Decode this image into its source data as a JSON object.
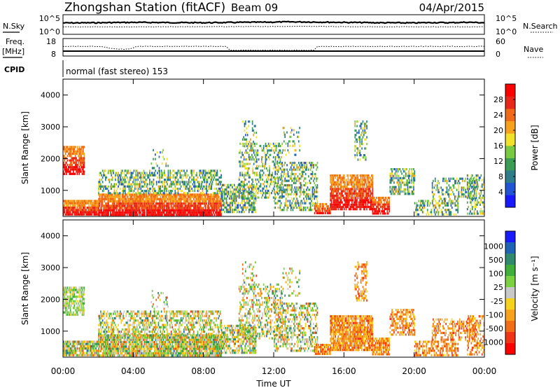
{
  "header": {
    "station": "Zhongshan Station (fitACF)",
    "beam": "Beam 09",
    "date": "04/Apr/2015"
  },
  "colors": {
    "nsky": "#000000",
    "nsearch": "#000000",
    "freq": "#000000",
    "nave": "#000000"
  },
  "chart_data": [
    {
      "type": "line",
      "title": "",
      "xlabel": "",
      "ylabel": "N.Sky",
      "y2label": "N.Search",
      "y_ticks": [
        "10^5",
        "10^0"
      ],
      "y2_ticks": [
        "10^5",
        "10^0"
      ],
      "y_scale": "log",
      "series": [
        {
          "name": "",
          "x": [
            0,
            2,
            4,
            6,
            8,
            10,
            12,
            13,
            14,
            16,
            18,
            20,
            21,
            22,
            23,
            24
          ],
          "values": [
            800,
            900,
            1100,
            1000,
            900,
            1100,
            1300,
            1500,
            1400,
            1100,
            900,
            800,
            1000,
            900,
            1200,
            900
          ]
        },
        {
          "name": "",
          "x": [
            0,
            4,
            8,
            12,
            14,
            16,
            18,
            20,
            22,
            24
          ],
          "values": [
            80,
            80,
            90,
            100,
            110,
            90,
            80,
            85,
            80,
            80
          ]
        }
      ]
    },
    {
      "type": "line",
      "title": "",
      "ylabel": "Freq. [MHz]",
      "y2label": "Nave",
      "y_ticks": [
        18,
        8
      ],
      "y2_ticks": [
        60,
        0
      ],
      "ylim": [
        8,
        18
      ],
      "y2lim": [
        0,
        60
      ],
      "series": [
        {
          "name": "",
          "x": [
            0,
            24
          ],
          "values": [
            10.8,
            10.8
          ]
        },
        {
          "name": "",
          "x": [
            0,
            2.2,
            2.6,
            3.0,
            3.4,
            3.8,
            4.2,
            6,
            9.3,
            9.5,
            14.3,
            14.5,
            24
          ],
          "values": [
            33,
            33,
            28,
            25,
            23,
            24,
            33,
            33,
            33,
            20,
            20,
            33,
            33
          ]
        }
      ]
    },
    {
      "type": "label",
      "cpid_label": "CPID",
      "cpid_text": "normal (fast stereo) 153"
    },
    {
      "type": "heatmap",
      "title": "",
      "ylabel": "Slant Range [km]",
      "ylim": [
        180,
        4500
      ],
      "y_ticks": [
        1000,
        2000,
        3000,
        4000
      ],
      "colorbar_label": "Power [dB]",
      "colorbar_ticks": [
        4,
        8,
        12,
        16,
        20,
        24,
        28
      ],
      "colorbar_range": [
        0,
        32
      ],
      "colorbar_colors": [
        "#1919ff",
        "#2255d4",
        "#2e7d8a",
        "#3b9c55",
        "#7ac943",
        "#f2e12b",
        "#f7a21c",
        "#f06a17",
        "#e8261a",
        "#ff0000"
      ]
    },
    {
      "type": "heatmap",
      "title": "",
      "ylabel": "Slant Range [km]",
      "ylim": [
        180,
        4500
      ],
      "y_ticks": [
        1000,
        2000,
        3000,
        4000
      ],
      "colorbar_label": "Velocity [m s⁻¹]",
      "colorbar_ticks": [
        "1000",
        "500",
        "100",
        "25",
        "-25",
        "-100",
        "-500",
        "-1000"
      ],
      "colorbar_colors": [
        "#1a1aff",
        "#1f63b5",
        "#2f8a6e",
        "#3fae3a",
        "#7bd13f",
        "#c8c8c8",
        "#f7d21c",
        "#f7a21c",
        "#f36d17",
        "#ef3515",
        "#ff0000"
      ]
    }
  ],
  "xaxis": {
    "label": "Time UT",
    "tick_labels": [
      "00:00",
      "04:00",
      "08:00",
      "12:00",
      "16:00",
      "20:00",
      "00:00"
    ],
    "range": [
      0,
      24
    ]
  }
}
